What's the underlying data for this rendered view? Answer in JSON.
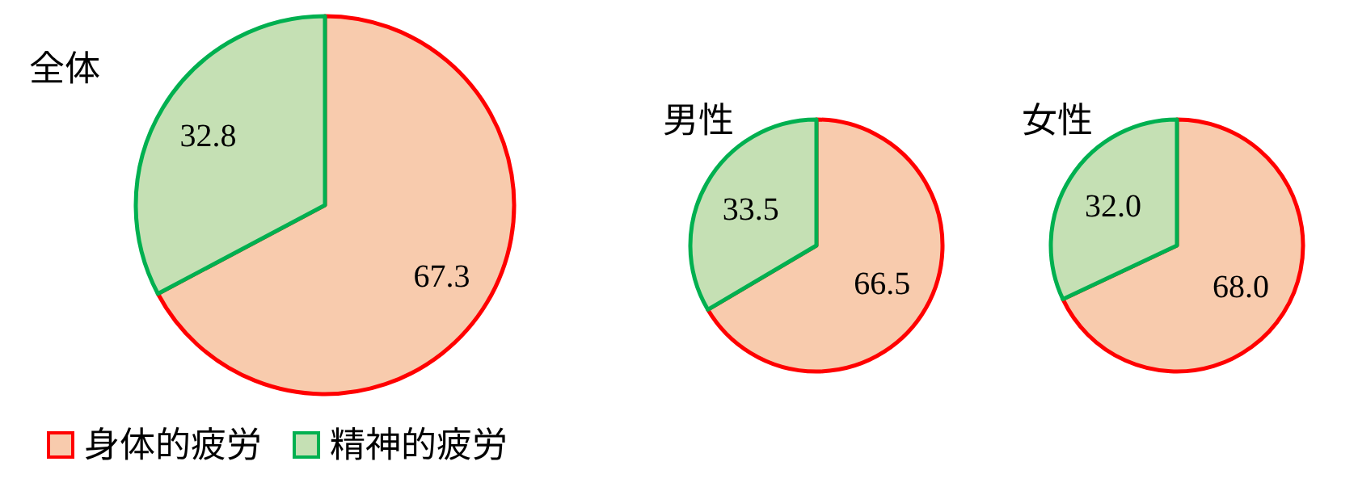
{
  "chart_data": [
    {
      "type": "pie",
      "title": "全体",
      "categories": [
        "身体的疲労",
        "精神的疲労"
      ],
      "values": [
        67.3,
        32.8
      ],
      "colors": [
        "#f8cbad",
        "#c5e0b4"
      ],
      "value_labels": [
        "67.3",
        "32.8"
      ],
      "legend": "bottom left"
    },
    {
      "type": "pie",
      "title": "男性",
      "categories": [
        null,
        null
      ],
      "values": [
        66.5,
        33.5
      ],
      "colors": [
        "#f8cbad",
        "#c5e0b4"
      ],
      "value_labels": [
        "66.5",
        "33.5"
      ]
    },
    {
      "type": "pie",
      "title": "女性",
      "categories": [
        null,
        null
      ],
      "values": [
        68.0,
        32.0
      ],
      "colors": [
        "#f8cbad",
        "#c5e0b4"
      ],
      "value_labels": [
        "68.0",
        "32.0"
      ]
    }
  ]
}
